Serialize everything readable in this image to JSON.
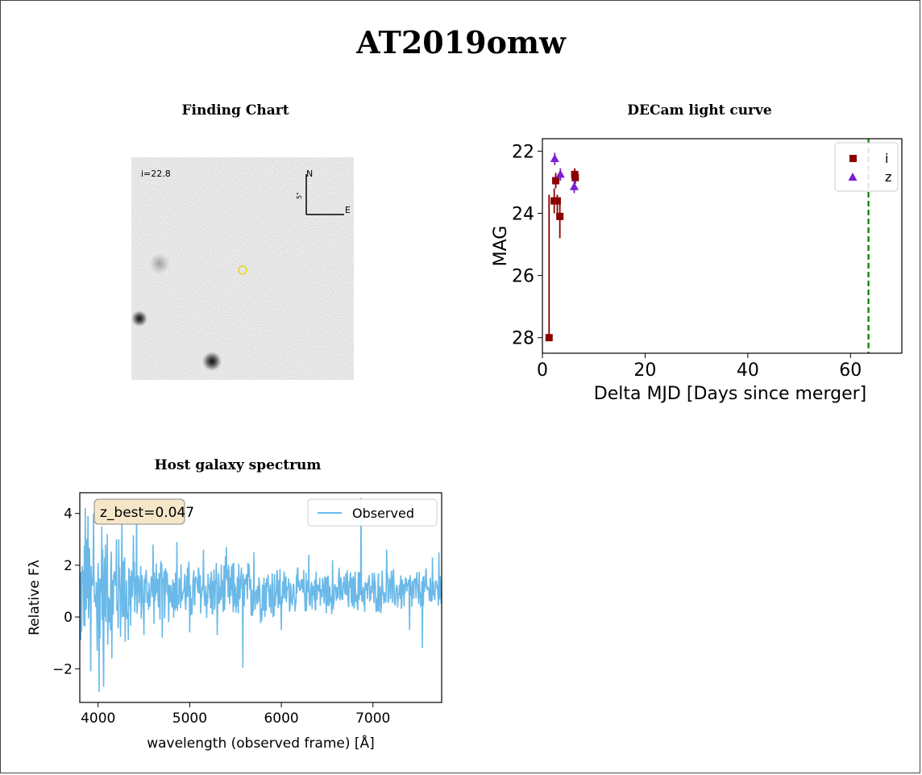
{
  "page_title": "AT2019omw",
  "finding_chart": {
    "title": "Finding Chart",
    "mag_label": "i=22.8",
    "compass_n": "N",
    "compass_e": "E",
    "scale_label": "5\""
  },
  "colors": {
    "i_band": "#8b0000",
    "z_band": "#7b1fd0",
    "merger_line": "#008000",
    "spectrum": "#6ab9e8",
    "redshift_box": "#f5e6c8"
  },
  "chart_data": [
    {
      "type": "scatter",
      "title": "DECam light curve",
      "xlabel": "Delta MJD [Days since merger]",
      "ylabel": "MAG",
      "xlim": [
        0,
        70
      ],
      "ylim": [
        28.5,
        21.6
      ],
      "y_inverted": true,
      "xticks": [
        0,
        20,
        40,
        60
      ],
      "yticks": [
        22,
        24,
        26,
        28
      ],
      "legend_position": "top-right",
      "series": [
        {
          "name": "i",
          "marker": "square",
          "points": [
            {
              "x": 1.3,
              "y": 28.0,
              "err_lo": 27.9,
              "err_hi": 23.4
            },
            {
              "x": 2.3,
              "y": 23.6,
              "err_lo": 24.0,
              "err_hi": 23.2
            },
            {
              "x": 2.6,
              "y": 22.95,
              "err_lo": 23.2,
              "err_hi": 22.7
            },
            {
              "x": 2.9,
              "y": 23.6,
              "err_lo": 24.1,
              "err_hi": 23.4
            },
            {
              "x": 3.4,
              "y": 24.1,
              "err_lo": 24.8,
              "err_hi": 23.5
            },
            {
              "x": 6.3,
              "y": 22.75,
              "err_lo": 22.95,
              "err_hi": 22.55
            },
            {
              "x": 6.4,
              "y": 22.85,
              "err_lo": 23.05,
              "err_hi": 22.65
            }
          ]
        },
        {
          "name": "z",
          "marker": "triangle",
          "points": [
            {
              "x": 2.4,
              "y": 22.25,
              "err_lo": 22.45,
              "err_hi": 22.05
            },
            {
              "x": 3.5,
              "y": 22.75,
              "err_lo": 22.95,
              "err_hi": 22.55
            },
            {
              "x": 6.2,
              "y": 23.15,
              "err_lo": 23.35,
              "err_hi": 22.95
            }
          ]
        }
      ],
      "vline": 63.5,
      "vline_style": "dashed"
    },
    {
      "type": "line",
      "title": "Host galaxy spectrum",
      "xlabel": "wavelength (observed frame) [Å]",
      "ylabel": "Relative Fλ",
      "xlim": [
        3800,
        7750
      ],
      "ylim": [
        -3.3,
        4.8
      ],
      "xticks": [
        4000,
        5000,
        6000,
        7000
      ],
      "yticks": [
        -2,
        0,
        2,
        4
      ],
      "legend_position": "top-right",
      "series": [
        {
          "name": "Observed"
        }
      ],
      "annotation": "z_best=0.047",
      "spikes": [
        {
          "x": 3810,
          "y": -0.9
        },
        {
          "x": 3860,
          "y": 4.2
        },
        {
          "x": 3890,
          "y": 3.9
        },
        {
          "x": 3920,
          "y": -2.1
        },
        {
          "x": 3950,
          "y": 4.0
        },
        {
          "x": 3990,
          "y": -1.3
        },
        {
          "x": 4010,
          "y": -2.9
        },
        {
          "x": 4040,
          "y": 3.5
        },
        {
          "x": 4060,
          "y": -2.7
        },
        {
          "x": 4100,
          "y": 3.2
        },
        {
          "x": 4150,
          "y": -1.6
        },
        {
          "x": 4200,
          "y": 3.0
        },
        {
          "x": 4260,
          "y": 3.9
        },
        {
          "x": 4330,
          "y": -0.9
        },
        {
          "x": 4420,
          "y": 4.2
        },
        {
          "x": 4500,
          "y": -0.7
        },
        {
          "x": 4600,
          "y": 2.8
        },
        {
          "x": 4700,
          "y": -0.8
        },
        {
          "x": 4860,
          "y": 2.9
        },
        {
          "x": 5000,
          "y": -0.6
        },
        {
          "x": 5150,
          "y": 2.6
        },
        {
          "x": 5300,
          "y": -0.7
        },
        {
          "x": 5400,
          "y": 2.7
        },
        {
          "x": 5580,
          "y": -1.95
        },
        {
          "x": 5700,
          "y": 2.5
        },
        {
          "x": 6000,
          "y": -0.5
        },
        {
          "x": 6300,
          "y": 2.4
        },
        {
          "x": 6560,
          "y": 2.2
        },
        {
          "x": 6870,
          "y": 4.6
        },
        {
          "x": 7150,
          "y": 2.6
        },
        {
          "x": 7400,
          "y": -0.5
        },
        {
          "x": 7540,
          "y": -1.2
        },
        {
          "x": 7650,
          "y": 2.3
        },
        {
          "x": 7720,
          "y": 2.5
        }
      ]
    }
  ]
}
